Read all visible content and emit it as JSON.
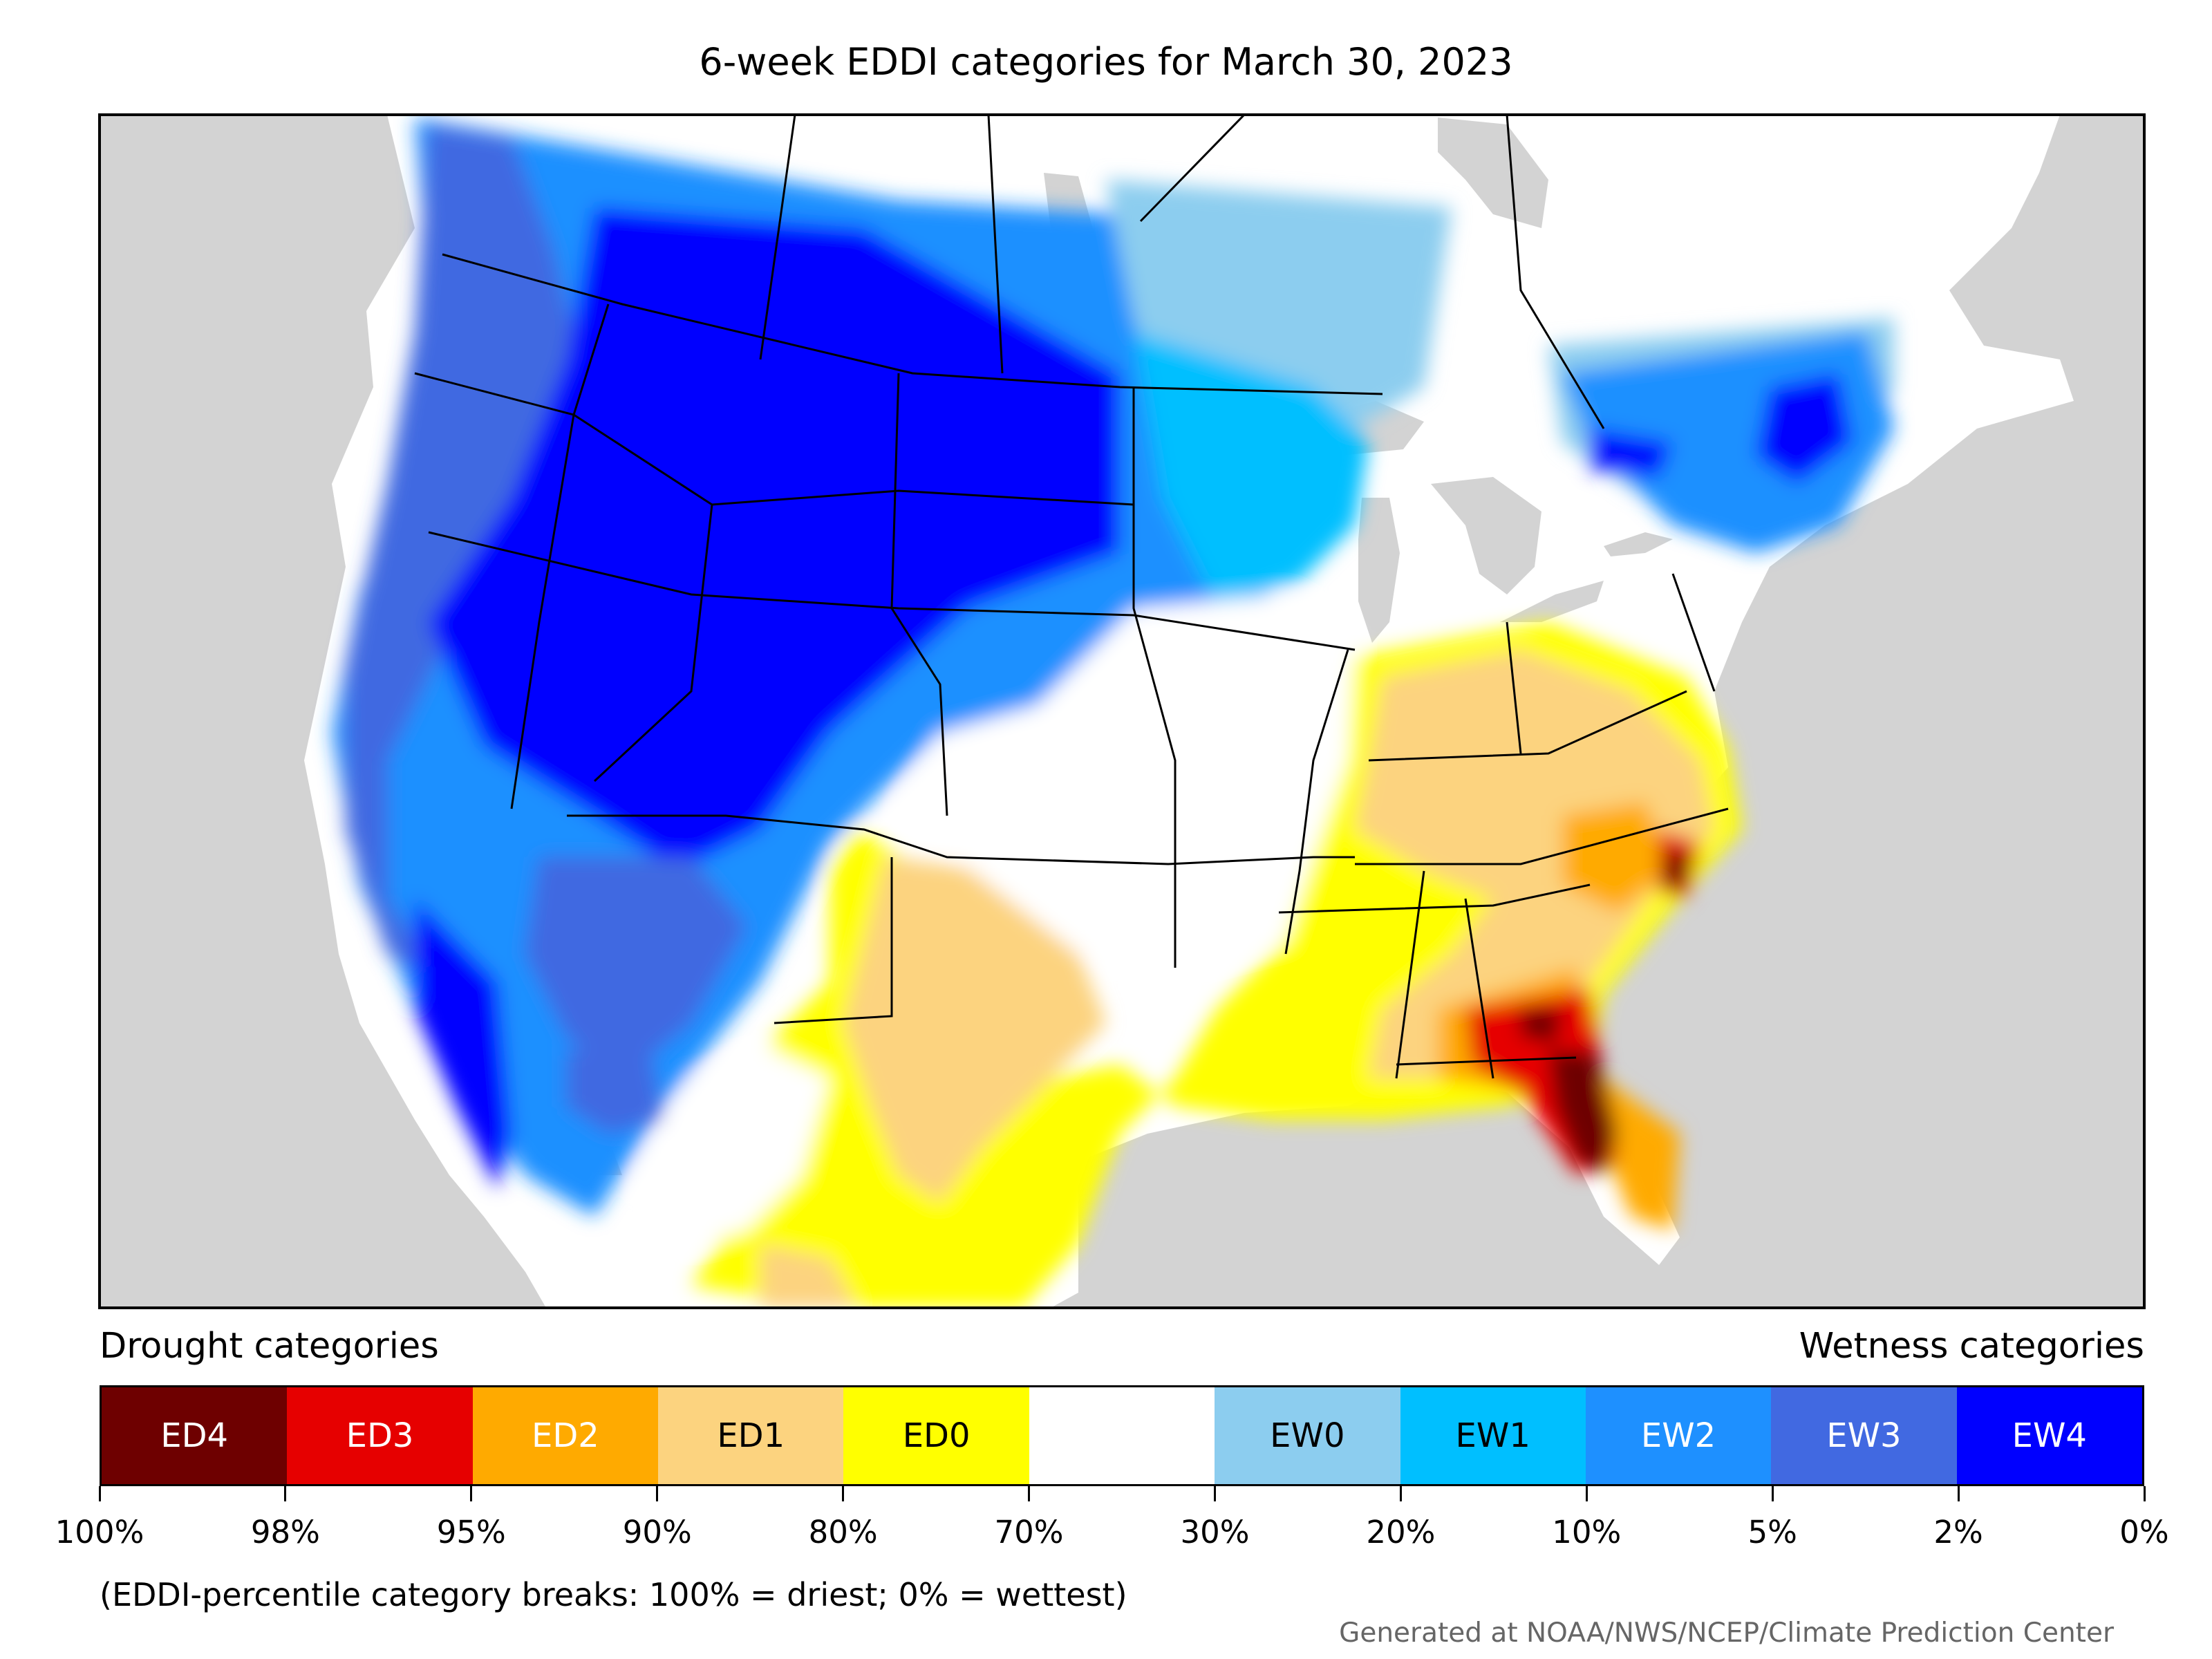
{
  "title": "6-week EDDI categories for March 30, 2023",
  "legend": {
    "drought_heading": "Drought categories",
    "wetness_heading": "Wetness categories",
    "categories": [
      {
        "label": "ED4",
        "color": "#6e0000",
        "text_color": "#ffffff"
      },
      {
        "label": "ED3",
        "color": "#e60000",
        "text_color": "#ffffff"
      },
      {
        "label": "ED2",
        "color": "#ffaa00",
        "text_color": "#ffffff"
      },
      {
        "label": "ED1",
        "color": "#fcd37f",
        "text_color": "#000000"
      },
      {
        "label": "ED0",
        "color": "#ffff00",
        "text_color": "#000000"
      },
      {
        "label": "",
        "color": "#ffffff",
        "text_color": "#000000"
      },
      {
        "label": "EW0",
        "color": "#8ccdef",
        "text_color": "#000000"
      },
      {
        "label": "EW1",
        "color": "#00bfff",
        "text_color": "#000000"
      },
      {
        "label": "EW2",
        "color": "#1e90ff",
        "text_color": "#ffffff"
      },
      {
        "label": "EW3",
        "color": "#4169e1",
        "text_color": "#ffffff"
      },
      {
        "label": "EW4",
        "color": "#0000ff",
        "text_color": "#ffffff"
      }
    ],
    "ticks": [
      "100%",
      "98%",
      "95%",
      "90%",
      "80%",
      "70%",
      "30%",
      "20%",
      "10%",
      "5%",
      "2%",
      "0%"
    ]
  },
  "note": "(EDDI-percentile category breaks: 100% = driest; 0% = wettest)",
  "credit": "Generated at NOAA/NWS/NCEP/Climate Prediction Center"
}
